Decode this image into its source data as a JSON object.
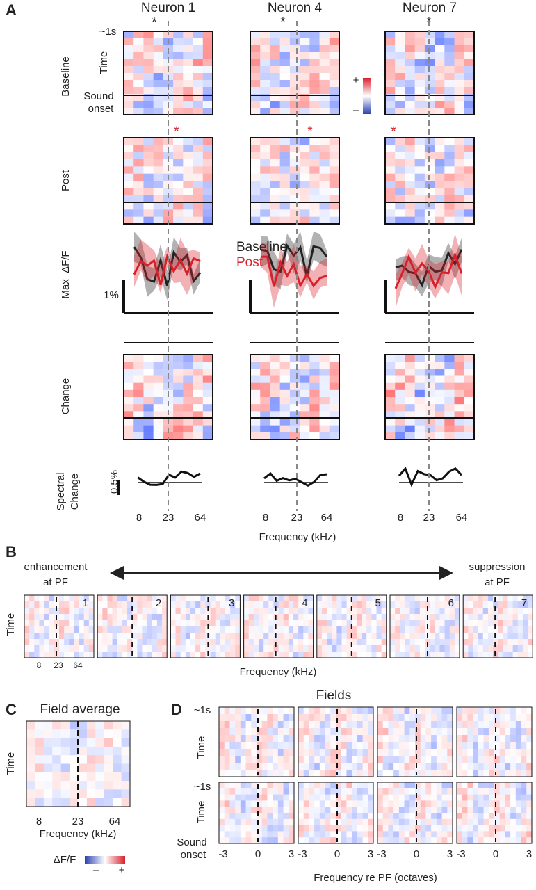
{
  "panel_a": {
    "label": "A",
    "neurons": [
      "Neuron 1",
      "Neuron 4",
      "Neuron 7"
    ],
    "peak_marker": "*",
    "time_scale": "~1s",
    "time_label": "Time",
    "sound_onset": [
      "Sound",
      "onset"
    ],
    "rows": [
      "Baseline",
      "Post",
      "Max  ΔF/F",
      "Change",
      [
        "Spectral",
        "Change"
      ]
    ],
    "colorbar": {
      "plus": "+",
      "minus": "–"
    },
    "legend": [
      "Baseline",
      "Post"
    ],
    "scale_bars": [
      "1%",
      "0.5%"
    ],
    "x_ticks": [
      "8",
      "23",
      "64"
    ],
    "x_label": "Frequency (kHz)"
  },
  "panel_b": {
    "label": "B",
    "left": [
      "enhancement",
      "at PF"
    ],
    "right": [
      "suppression",
      "at PF"
    ],
    "numbers": [
      "1",
      "2",
      "3",
      "4",
      "5",
      "6",
      "7"
    ],
    "time_label": "Time",
    "x_ticks": [
      "8",
      "23",
      "64"
    ],
    "x_label": "Frequency (kHz)"
  },
  "panel_c": {
    "label": "C",
    "title": "Field average",
    "time_label": "Time",
    "x_ticks": [
      "8",
      "23",
      "64"
    ],
    "x_label": "Frequency (kHz)",
    "colorbar": {
      "label": "ΔF/F",
      "minus": "–",
      "plus": "+"
    }
  },
  "panel_d": {
    "label": "D",
    "title": "Fields",
    "time_scale": "~1s",
    "time_label": "Time",
    "sound_onset": [
      "Sound",
      "onset"
    ],
    "x_ticks": [
      "-3",
      "0",
      "3"
    ],
    "x_label": "Frequency re PF (octaves)"
  }
}
